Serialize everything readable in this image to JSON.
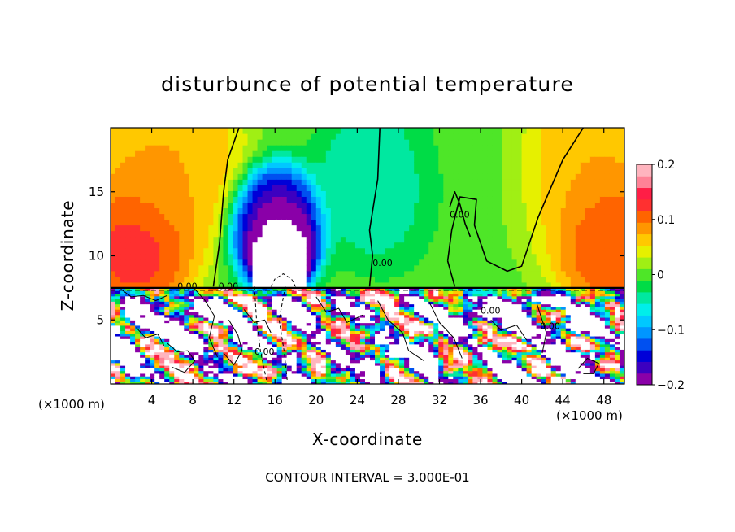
{
  "chart_data": {
    "type": "heatmap",
    "title": "disturbunce of potential temperature",
    "xlabel": "X-coordinate",
    "ylabel": "Z-coordinate",
    "x_unit": "(×1000 m)",
    "x_unit_right": "(×1000 m)",
    "footer": "CONTOUR INTERVAL = 3.000E-01",
    "xlim": [
      0,
      50
    ],
    "ylim": [
      0,
      20
    ],
    "xticks": [
      4,
      8,
      12,
      16,
      20,
      24,
      28,
      32,
      36,
      40,
      44,
      48
    ],
    "yticks": [
      5,
      10,
      15
    ],
    "colorbar": {
      "range": [
        -0.2,
        0.2
      ],
      "ticks": [
        0.2,
        0.1,
        0,
        -0.1,
        -0.2
      ],
      "tick_labels": [
        "0.2",
        "0.1",
        "0",
        "−0.1",
        "−0.2"
      ],
      "levels": [
        "#8a00a8",
        "#3c00c0",
        "#0000d8",
        "#0050f0",
        "#0096ff",
        "#00c8ff",
        "#00eeea",
        "#00e8a0",
        "#00dc46",
        "#4ee628",
        "#a0ef14",
        "#e6f000",
        "#ffc800",
        "#ff9600",
        "#ff6400",
        "#ff3030",
        "#ff1e46",
        "#ff8296",
        "#ffb4be"
      ]
    },
    "contour_interval": 0.3,
    "contour_labels": [
      {
        "x": 6.5,
        "z": 7.4,
        "text": "0.00"
      },
      {
        "x": 10.5,
        "z": 7.4,
        "text": "0.00"
      },
      {
        "x": 14.0,
        "z": 2.3,
        "text": "0.00"
      },
      {
        "x": 25.5,
        "z": 9.2,
        "text": "0.00"
      },
      {
        "x": 33.0,
        "z": 13.0,
        "text": "0.00"
      },
      {
        "x": 36.0,
        "z": 5.5,
        "text": "0.00"
      },
      {
        "x": 41.8,
        "z": 4.3,
        "text": "0.00"
      }
    ],
    "features": [
      {
        "x": 16.0,
        "z": 12.5,
        "value": -0.2,
        "radius_km": 2.8
      },
      {
        "x": 16.5,
        "z": 10.5,
        "value": -0.35,
        "radius_km": 2.0
      },
      {
        "x": 2.5,
        "z": 11.0,
        "value": 0.14,
        "radius_km": 3.5
      },
      {
        "x": 48.5,
        "z": 11.5,
        "value": 0.13,
        "radius_km": 3.5
      },
      {
        "x": 5.0,
        "z": 17.0,
        "value": 0.08,
        "radius_km": 5.0
      },
      {
        "x": 45.0,
        "z": 17.0,
        "value": 0.08,
        "radius_km": 5.0
      },
      {
        "x": 35.0,
        "z": 17.0,
        "value": 0.0,
        "radius_km": 6.0
      },
      {
        "x": 27.0,
        "z": 16.0,
        "value": -0.06,
        "radius_km": 4.0
      }
    ]
  }
}
